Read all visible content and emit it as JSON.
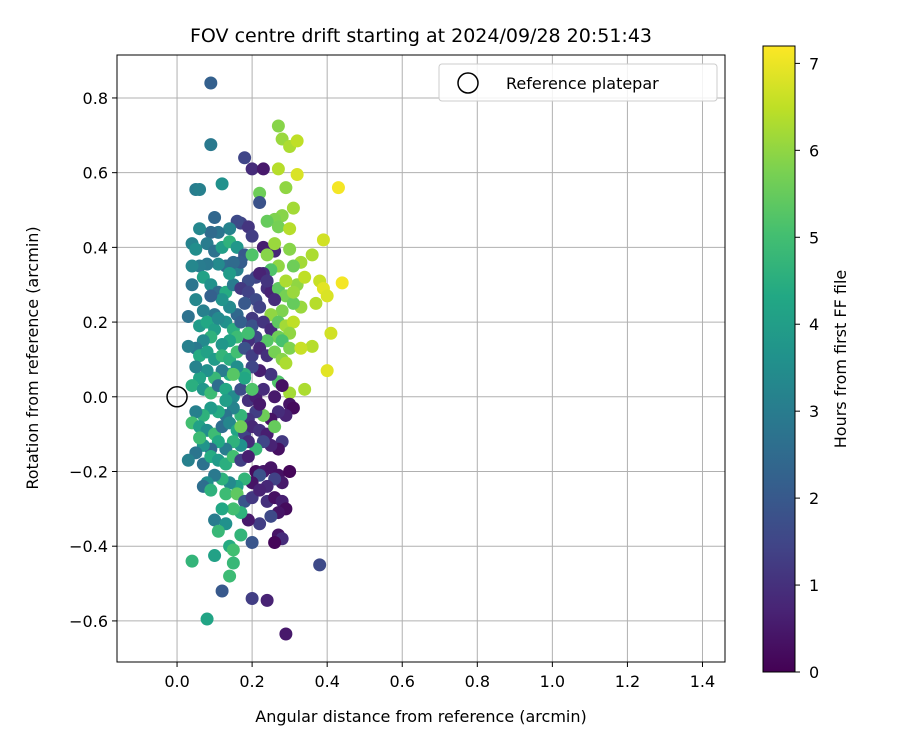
{
  "chart_data": {
    "type": "scatter",
    "title": "FOV centre drift starting at 2024/09/28 20:51:43",
    "xlabel": "Angular distance from reference (arcmin)",
    "ylabel": "Rotation from reference (arcmin)",
    "xlim": [
      -0.16,
      1.46
    ],
    "ylim": [
      -0.71,
      0.915
    ],
    "xticks": [
      0.0,
      0.2,
      0.4,
      0.6,
      0.8,
      1.0,
      1.2,
      1.4
    ],
    "yticks": [
      -0.6,
      -0.4,
      -0.2,
      0.0,
      0.2,
      0.4,
      0.6,
      0.8
    ],
    "grid": true,
    "legend": {
      "placement": "top-right",
      "entries": [
        "Reference platepar"
      ]
    },
    "reference_point": {
      "x": 0.0,
      "y": 0.0,
      "label": "Reference platepar"
    },
    "colorbar": {
      "label": "Hours from first FF file",
      "colormap": "viridis",
      "range": [
        0,
        7.2
      ],
      "ticks": [
        0,
        1,
        2,
        3,
        4,
        5,
        6,
        7
      ]
    },
    "points": [
      [
        0.09,
        0.84,
        2.2
      ],
      [
        0.09,
        0.675,
        2.9
      ],
      [
        0.18,
        0.64,
        1.5
      ],
      [
        0.2,
        0.61,
        0.9
      ],
      [
        0.23,
        0.61,
        0.5
      ],
      [
        0.27,
        0.725,
        5.9
      ],
      [
        0.28,
        0.69,
        6.1
      ],
      [
        0.3,
        0.67,
        6.3
      ],
      [
        0.32,
        0.685,
        6.5
      ],
      [
        0.27,
        0.61,
        6.4
      ],
      [
        0.29,
        0.56,
        6.0
      ],
      [
        0.32,
        0.595,
        6.8
      ],
      [
        0.43,
        0.56,
        7.1
      ],
      [
        0.22,
        0.545,
        5.6
      ],
      [
        0.22,
        0.52,
        1.8
      ],
      [
        0.05,
        0.555,
        3.0
      ],
      [
        0.06,
        0.555,
        3.1
      ],
      [
        0.12,
        0.57,
        3.6
      ],
      [
        0.1,
        0.48,
        2.4
      ],
      [
        0.31,
        0.505,
        6.2
      ],
      [
        0.28,
        0.485,
        5.9
      ],
      [
        0.26,
        0.475,
        5.8
      ],
      [
        0.24,
        0.47,
        5.5
      ],
      [
        0.27,
        0.455,
        5.7
      ],
      [
        0.3,
        0.45,
        6.4
      ],
      [
        0.17,
        0.465,
        1.4
      ],
      [
        0.19,
        0.455,
        1.1
      ],
      [
        0.16,
        0.47,
        1.6
      ],
      [
        0.2,
        0.43,
        1.3
      ],
      [
        0.14,
        0.45,
        3.2
      ],
      [
        0.11,
        0.44,
        2.8
      ],
      [
        0.09,
        0.44,
        2.5
      ],
      [
        0.06,
        0.45,
        3.3
      ],
      [
        0.08,
        0.41,
        3.0
      ],
      [
        0.04,
        0.41,
        3.2
      ],
      [
        0.05,
        0.395,
        3.5
      ],
      [
        0.1,
        0.39,
        2.7
      ],
      [
        0.12,
        0.4,
        4.0
      ],
      [
        0.14,
        0.415,
        4.6
      ],
      [
        0.16,
        0.4,
        3.8
      ],
      [
        0.18,
        0.38,
        2.0
      ],
      [
        0.2,
        0.38,
        5.2
      ],
      [
        0.23,
        0.4,
        0.6
      ],
      [
        0.26,
        0.39,
        0.8
      ],
      [
        0.3,
        0.395,
        5.9
      ],
      [
        0.39,
        0.42,
        6.7
      ],
      [
        0.36,
        0.38,
        6.3
      ],
      [
        0.33,
        0.36,
        6.2
      ],
      [
        0.31,
        0.35,
        5.6
      ],
      [
        0.27,
        0.35,
        6.0
      ],
      [
        0.25,
        0.34,
        5.2
      ],
      [
        0.23,
        0.33,
        1.0
      ],
      [
        0.21,
        0.32,
        1.5
      ],
      [
        0.19,
        0.31,
        1.7
      ],
      [
        0.16,
        0.34,
        3.1
      ],
      [
        0.13,
        0.35,
        2.6
      ],
      [
        0.11,
        0.355,
        3.4
      ],
      [
        0.08,
        0.355,
        2.9
      ],
      [
        0.06,
        0.35,
        3.0
      ],
      [
        0.04,
        0.35,
        3.3
      ],
      [
        0.07,
        0.32,
        4.1
      ],
      [
        0.04,
        0.3,
        2.8
      ],
      [
        0.09,
        0.3,
        3.6
      ],
      [
        0.11,
        0.28,
        2.5
      ],
      [
        0.13,
        0.28,
        4.4
      ],
      [
        0.15,
        0.3,
        3.0
      ],
      [
        0.17,
        0.29,
        1.2
      ],
      [
        0.19,
        0.28,
        1.4
      ],
      [
        0.21,
        0.26,
        1.6
      ],
      [
        0.24,
        0.29,
        1.0
      ],
      [
        0.25,
        0.28,
        0.7
      ],
      [
        0.27,
        0.29,
        5.4
      ],
      [
        0.29,
        0.27,
        5.7
      ],
      [
        0.32,
        0.3,
        6.0
      ],
      [
        0.34,
        0.32,
        6.5
      ],
      [
        0.38,
        0.31,
        6.6
      ],
      [
        0.39,
        0.29,
        6.9
      ],
      [
        0.44,
        0.305,
        7.1
      ],
      [
        0.4,
        0.27,
        6.8
      ],
      [
        0.37,
        0.25,
        6.4
      ],
      [
        0.33,
        0.24,
        6.1
      ],
      [
        0.31,
        0.25,
        5.5
      ],
      [
        0.28,
        0.23,
        5.8
      ],
      [
        0.25,
        0.22,
        6.0
      ],
      [
        0.22,
        0.24,
        1.4
      ],
      [
        0.2,
        0.21,
        1.2
      ],
      [
        0.18,
        0.25,
        2.0
      ],
      [
        0.16,
        0.22,
        2.4
      ],
      [
        0.14,
        0.24,
        3.4
      ],
      [
        0.12,
        0.26,
        3.7
      ],
      [
        0.1,
        0.22,
        2.8
      ],
      [
        0.07,
        0.23,
        3.1
      ],
      [
        0.05,
        0.26,
        3.3
      ],
      [
        0.03,
        0.215,
        2.7
      ],
      [
        0.06,
        0.19,
        3.9
      ],
      [
        0.08,
        0.2,
        4.3
      ],
      [
        0.1,
        0.18,
        4.0
      ],
      [
        0.13,
        0.2,
        3.6
      ],
      [
        0.15,
        0.18,
        4.5
      ],
      [
        0.17,
        0.2,
        2.2
      ],
      [
        0.2,
        0.19,
        1.8
      ],
      [
        0.23,
        0.2,
        1.1
      ],
      [
        0.25,
        0.18,
        0.9
      ],
      [
        0.27,
        0.2,
        5.4
      ],
      [
        0.29,
        0.19,
        6.2
      ],
      [
        0.31,
        0.2,
        6.5
      ],
      [
        0.3,
        0.17,
        6.0
      ],
      [
        0.27,
        0.16,
        5.6
      ],
      [
        0.24,
        0.15,
        5.3
      ],
      [
        0.21,
        0.16,
        1.5
      ],
      [
        0.19,
        0.15,
        1.0
      ],
      [
        0.16,
        0.16,
        4.9
      ],
      [
        0.14,
        0.15,
        4.2
      ],
      [
        0.12,
        0.14,
        3.8
      ],
      [
        0.09,
        0.16,
        4.6
      ],
      [
        0.07,
        0.15,
        3.4
      ],
      [
        0.05,
        0.13,
        2.9
      ],
      [
        0.03,
        0.135,
        3.1
      ],
      [
        0.06,
        0.11,
        4.4
      ],
      [
        0.08,
        0.12,
        4.1
      ],
      [
        0.1,
        0.1,
        3.9
      ],
      [
        0.12,
        0.11,
        4.7
      ],
      [
        0.14,
        0.1,
        4.5
      ],
      [
        0.16,
        0.12,
        5.0
      ],
      [
        0.18,
        0.13,
        1.8
      ],
      [
        0.2,
        0.11,
        1.3
      ],
      [
        0.22,
        0.13,
        0.8
      ],
      [
        0.24,
        0.11,
        1.0
      ],
      [
        0.26,
        0.12,
        5.7
      ],
      [
        0.28,
        0.1,
        5.9
      ],
      [
        0.29,
        0.09,
        6.3
      ],
      [
        0.36,
        0.135,
        6.4
      ],
      [
        0.41,
        0.17,
        6.7
      ],
      [
        0.4,
        0.07,
        6.9
      ],
      [
        0.34,
        0.02,
        6.3
      ],
      [
        0.3,
        0.01,
        6.2
      ],
      [
        0.27,
        0.04,
        5.2
      ],
      [
        0.25,
        0.06,
        1.1
      ],
      [
        0.22,
        0.07,
        0.6
      ],
      [
        0.2,
        0.08,
        1.5
      ],
      [
        0.18,
        0.06,
        4.6
      ],
      [
        0.16,
        0.08,
        3.5
      ],
      [
        0.14,
        0.06,
        4.4
      ],
      [
        0.12,
        0.07,
        3.0
      ],
      [
        0.1,
        0.05,
        4.8
      ],
      [
        0.08,
        0.07,
        3.6
      ],
      [
        0.06,
        0.05,
        4.2
      ],
      [
        0.05,
        0.08,
        3.2
      ],
      [
        0.04,
        0.03,
        4.5
      ],
      [
        0.07,
        0.02,
        3.8
      ],
      [
        0.09,
        0.01,
        4.9
      ],
      [
        0.11,
        0.03,
        2.6
      ],
      [
        0.13,
        0.02,
        4.3
      ],
      [
        0.15,
        0.0,
        3.4
      ],
      [
        0.17,
        0.02,
        1.7
      ],
      [
        0.19,
        -0.01,
        1.0
      ],
      [
        0.21,
        0.0,
        0.6
      ],
      [
        0.23,
        0.02,
        0.9
      ],
      [
        0.26,
        0.0,
        0.5
      ],
      [
        0.28,
        0.03,
        0.3
      ],
      [
        0.3,
        -0.02,
        0.4
      ],
      [
        0.31,
        -0.03,
        0.2
      ],
      [
        0.29,
        -0.05,
        0.7
      ],
      [
        0.27,
        -0.04,
        0.9
      ],
      [
        0.25,
        -0.06,
        0.4
      ],
      [
        0.23,
        -0.05,
        5.6
      ],
      [
        0.21,
        -0.04,
        1.3
      ],
      [
        0.19,
        -0.06,
        1.1
      ],
      [
        0.17,
        -0.05,
        4.7
      ],
      [
        0.15,
        -0.03,
        3.2
      ],
      [
        0.13,
        -0.05,
        2.8
      ],
      [
        0.11,
        -0.04,
        4.4
      ],
      [
        0.09,
        -0.03,
        3.9
      ],
      [
        0.07,
        -0.05,
        4.6
      ],
      [
        0.05,
        -0.04,
        3.1
      ],
      [
        0.04,
        -0.07,
        5.0
      ],
      [
        0.06,
        -0.08,
        4.1
      ],
      [
        0.08,
        -0.09,
        3.5
      ],
      [
        0.1,
        -0.1,
        4.9
      ],
      [
        0.12,
        -0.08,
        2.6
      ],
      [
        0.14,
        -0.07,
        3.3
      ],
      [
        0.16,
        -0.09,
        4.2
      ],
      [
        0.18,
        -0.1,
        1.4
      ],
      [
        0.2,
        -0.08,
        0.8
      ],
      [
        0.22,
        -0.09,
        1.0
      ],
      [
        0.24,
        -0.1,
        0.6
      ],
      [
        0.26,
        -0.08,
        5.5
      ],
      [
        0.28,
        -0.12,
        1.2
      ],
      [
        0.27,
        -0.14,
        0.3
      ],
      [
        0.25,
        -0.13,
        0.7
      ],
      [
        0.23,
        -0.12,
        1.5
      ],
      [
        0.21,
        -0.14,
        4.8
      ],
      [
        0.19,
        -0.12,
        0.9
      ],
      [
        0.17,
        -0.13,
        3.6
      ],
      [
        0.15,
        -0.12,
        4.6
      ],
      [
        0.13,
        -0.14,
        3.0
      ],
      [
        0.11,
        -0.12,
        4.3
      ],
      [
        0.09,
        -0.14,
        2.4
      ],
      [
        0.07,
        -0.13,
        3.7
      ],
      [
        0.06,
        -0.11,
        4.9
      ],
      [
        0.05,
        -0.15,
        2.8
      ],
      [
        0.03,
        -0.17,
        3.1
      ],
      [
        0.07,
        -0.18,
        2.7
      ],
      [
        0.09,
        -0.16,
        4.4
      ],
      [
        0.11,
        -0.17,
        3.9
      ],
      [
        0.13,
        -0.18,
        4.5
      ],
      [
        0.15,
        -0.16,
        5.0
      ],
      [
        0.17,
        -0.17,
        1.3
      ],
      [
        0.19,
        -0.16,
        0.6
      ],
      [
        0.21,
        -0.2,
        0.2
      ],
      [
        0.23,
        -0.2,
        0.5
      ],
      [
        0.25,
        -0.19,
        0.4
      ],
      [
        0.27,
        -0.21,
        0.3
      ],
      [
        0.3,
        -0.2,
        0.1
      ],
      [
        0.28,
        -0.23,
        0.5
      ],
      [
        0.26,
        -0.22,
        1.4
      ],
      [
        0.24,
        -0.24,
        0.8
      ],
      [
        0.22,
        -0.21,
        1.8
      ],
      [
        0.2,
        -0.23,
        0.4
      ],
      [
        0.18,
        -0.22,
        4.7
      ],
      [
        0.16,
        -0.24,
        4.1
      ],
      [
        0.14,
        -0.23,
        3.4
      ],
      [
        0.12,
        -0.22,
        4.6
      ],
      [
        0.1,
        -0.21,
        2.9
      ],
      [
        0.08,
        -0.23,
        3.5
      ],
      [
        0.07,
        -0.24,
        2.6
      ],
      [
        0.09,
        -0.25,
        4.6
      ],
      [
        0.13,
        -0.26,
        4.9
      ],
      [
        0.16,
        -0.26,
        5.4
      ],
      [
        0.18,
        -0.28,
        1.9
      ],
      [
        0.2,
        -0.27,
        1.2
      ],
      [
        0.22,
        -0.25,
        0.7
      ],
      [
        0.24,
        -0.28,
        1.0
      ],
      [
        0.26,
        -0.27,
        0.3
      ],
      [
        0.28,
        -0.28,
        0.6
      ],
      [
        0.29,
        -0.3,
        0.2
      ],
      [
        0.27,
        -0.31,
        0.4
      ],
      [
        0.25,
        -0.32,
        1.6
      ],
      [
        0.22,
        -0.34,
        1.3
      ],
      [
        0.19,
        -0.33,
        0.5
      ],
      [
        0.17,
        -0.31,
        4.6
      ],
      [
        0.15,
        -0.3,
        5.0
      ],
      [
        0.12,
        -0.3,
        4.3
      ],
      [
        0.1,
        -0.33,
        3.0
      ],
      [
        0.13,
        -0.34,
        3.6
      ],
      [
        0.11,
        -0.36,
        4.8
      ],
      [
        0.2,
        -0.39,
        1.9
      ],
      [
        0.17,
        -0.37,
        4.7
      ],
      [
        0.27,
        -0.37,
        0.4
      ],
      [
        0.28,
        -0.38,
        0.9
      ],
      [
        0.26,
        -0.39,
        0.1
      ],
      [
        0.14,
        -0.4,
        4.4
      ],
      [
        0.15,
        -0.41,
        5.0
      ],
      [
        0.1,
        -0.425,
        4.1
      ],
      [
        0.15,
        -0.445,
        4.8
      ],
      [
        0.04,
        -0.44,
        4.7
      ],
      [
        0.38,
        -0.45,
        1.6
      ],
      [
        0.14,
        -0.48,
        4.9
      ],
      [
        0.12,
        -0.52,
        2.0
      ],
      [
        0.2,
        -0.54,
        1.3
      ],
      [
        0.24,
        -0.545,
        0.7
      ],
      [
        0.08,
        -0.595,
        4.2
      ],
      [
        0.29,
        -0.635,
        0.5
      ],
      [
        0.22,
        0.33,
        0.7
      ],
      [
        0.24,
        0.31,
        1.1
      ],
      [
        0.26,
        0.26,
        0.9
      ],
      [
        0.18,
        0.05,
        4.3
      ],
      [
        0.2,
        0.02,
        5.2
      ],
      [
        0.22,
        -0.02,
        0.5
      ],
      [
        0.28,
        0.15,
        5.1
      ],
      [
        0.3,
        0.13,
        5.8
      ],
      [
        0.17,
        0.36,
        2.1
      ],
      [
        0.15,
        0.36,
        2.5
      ],
      [
        0.11,
        0.21,
        3.4
      ],
      [
        0.09,
        0.27,
        2.2
      ],
      [
        0.19,
        0.17,
        5.0
      ],
      [
        0.14,
        0.33,
        3.9
      ],
      [
        0.24,
        0.38,
        5.9
      ],
      [
        0.26,
        0.41,
        6.1
      ],
      [
        0.33,
        0.13,
        6.6
      ],
      [
        0.29,
        0.31,
        6.3
      ],
      [
        0.31,
        0.28,
        6.1
      ],
      [
        0.13,
        -0.01,
        4.0
      ],
      [
        0.15,
        0.06,
        5.3
      ],
      [
        0.17,
        -0.08,
        5.6
      ]
    ]
  }
}
